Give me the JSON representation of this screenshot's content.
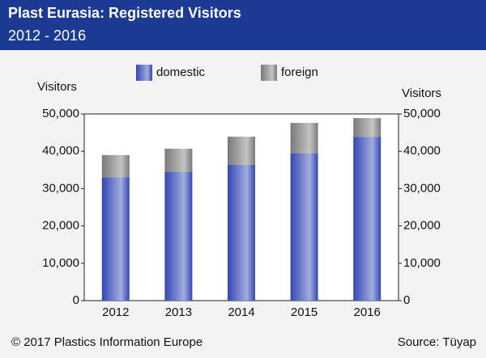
{
  "chart_data": {
    "type": "bar",
    "stacked": true,
    "title": "Plast Eurasia: Registered Visitors",
    "subtitle": "2012 - 2016",
    "ylabel": "Visitors",
    "y2label": "Visitors",
    "categories": [
      "2012",
      "2013",
      "2014",
      "2015",
      "2016"
    ],
    "series": [
      {
        "name": "domestic",
        "color": "#3347b4",
        "values": [
          33000,
          34500,
          36400,
          39400,
          43900
        ]
      },
      {
        "name": "foreign",
        "color": "#7a7a7a",
        "values": [
          6000,
          6200,
          7500,
          8200,
          5000
        ]
      }
    ],
    "ylim": [
      0,
      50000
    ],
    "yticks": [
      0,
      {
        "value": 10000,
        "label": "10,000"
      },
      {
        "value": 20000,
        "label": "20,000"
      },
      {
        "value": 30000,
        "label": "30,000"
      },
      {
        "value": 40000,
        "label": "40,000"
      },
      {
        "value": 50000,
        "label": "50,000"
      }
    ],
    "y2lim": [
      0,
      50000
    ],
    "y2ticks": [
      0,
      {
        "value": 10000,
        "label": "10,000"
      },
      {
        "value": 20000,
        "label": "20,000"
      },
      {
        "value": 30000,
        "label": "30,000"
      },
      {
        "value": 40000,
        "label": "40,000"
      },
      {
        "value": 50000,
        "label": "50,000"
      }
    ],
    "copyright": "© 2017 Plastics Information Europe",
    "source": "Source: Tüyap"
  }
}
